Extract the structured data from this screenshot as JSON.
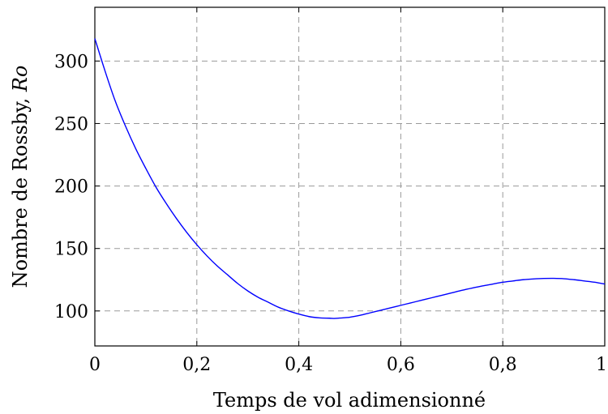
{
  "chart_data": {
    "type": "line",
    "xlabel": "Temps de vol adimensionné",
    "ylabel_main": "Nombre de Rossby, ",
    "ylabel_italic": "Ro",
    "xlim": [
      0,
      1
    ],
    "ylim": [
      72,
      343
    ],
    "x_ticks": [
      0,
      0.2,
      0.4,
      0.6,
      0.8,
      1
    ],
    "x_tick_labels": [
      "0",
      "0,2",
      "0,4",
      "0,6",
      "0,8",
      "1"
    ],
    "y_ticks": [
      100,
      150,
      200,
      250,
      300
    ],
    "y_tick_labels": [
      "100",
      "150",
      "200",
      "250",
      "300"
    ],
    "grid": true,
    "line_color": "#0000ff",
    "series": [
      {
        "x": [
          0,
          0.02,
          0.04,
          0.06,
          0.08,
          0.1,
          0.12,
          0.14,
          0.16,
          0.18,
          0.2,
          0.22,
          0.24,
          0.26,
          0.28,
          0.3,
          0.32,
          0.34,
          0.36,
          0.38,
          0.4,
          0.42,
          0.44,
          0.46,
          0.47,
          0.48,
          0.5,
          0.52,
          0.54,
          0.56,
          0.58,
          0.6,
          0.62,
          0.64,
          0.66,
          0.68,
          0.7,
          0.72,
          0.74,
          0.76,
          0.78,
          0.8,
          0.82,
          0.84,
          0.86,
          0.88,
          0.9,
          0.92,
          0.94,
          0.96,
          0.98,
          1.0
        ],
        "y": [
          318,
          292,
          268,
          248,
          230,
          214,
          199,
          186,
          174,
          163,
          153,
          144,
          136,
          129,
          122,
          116,
          111,
          107,
          103,
          100,
          97.5,
          95.5,
          94.5,
          94.2,
          94,
          94.3,
          95,
          96.5,
          98.5,
          100.5,
          102.5,
          104.5,
          106.5,
          108.5,
          110.5,
          112.5,
          114.5,
          116.5,
          118.3,
          120,
          121.5,
          123,
          124,
          125,
          125.6,
          126,
          126.1,
          125.8,
          125,
          124,
          123,
          121.5
        ]
      }
    ]
  }
}
